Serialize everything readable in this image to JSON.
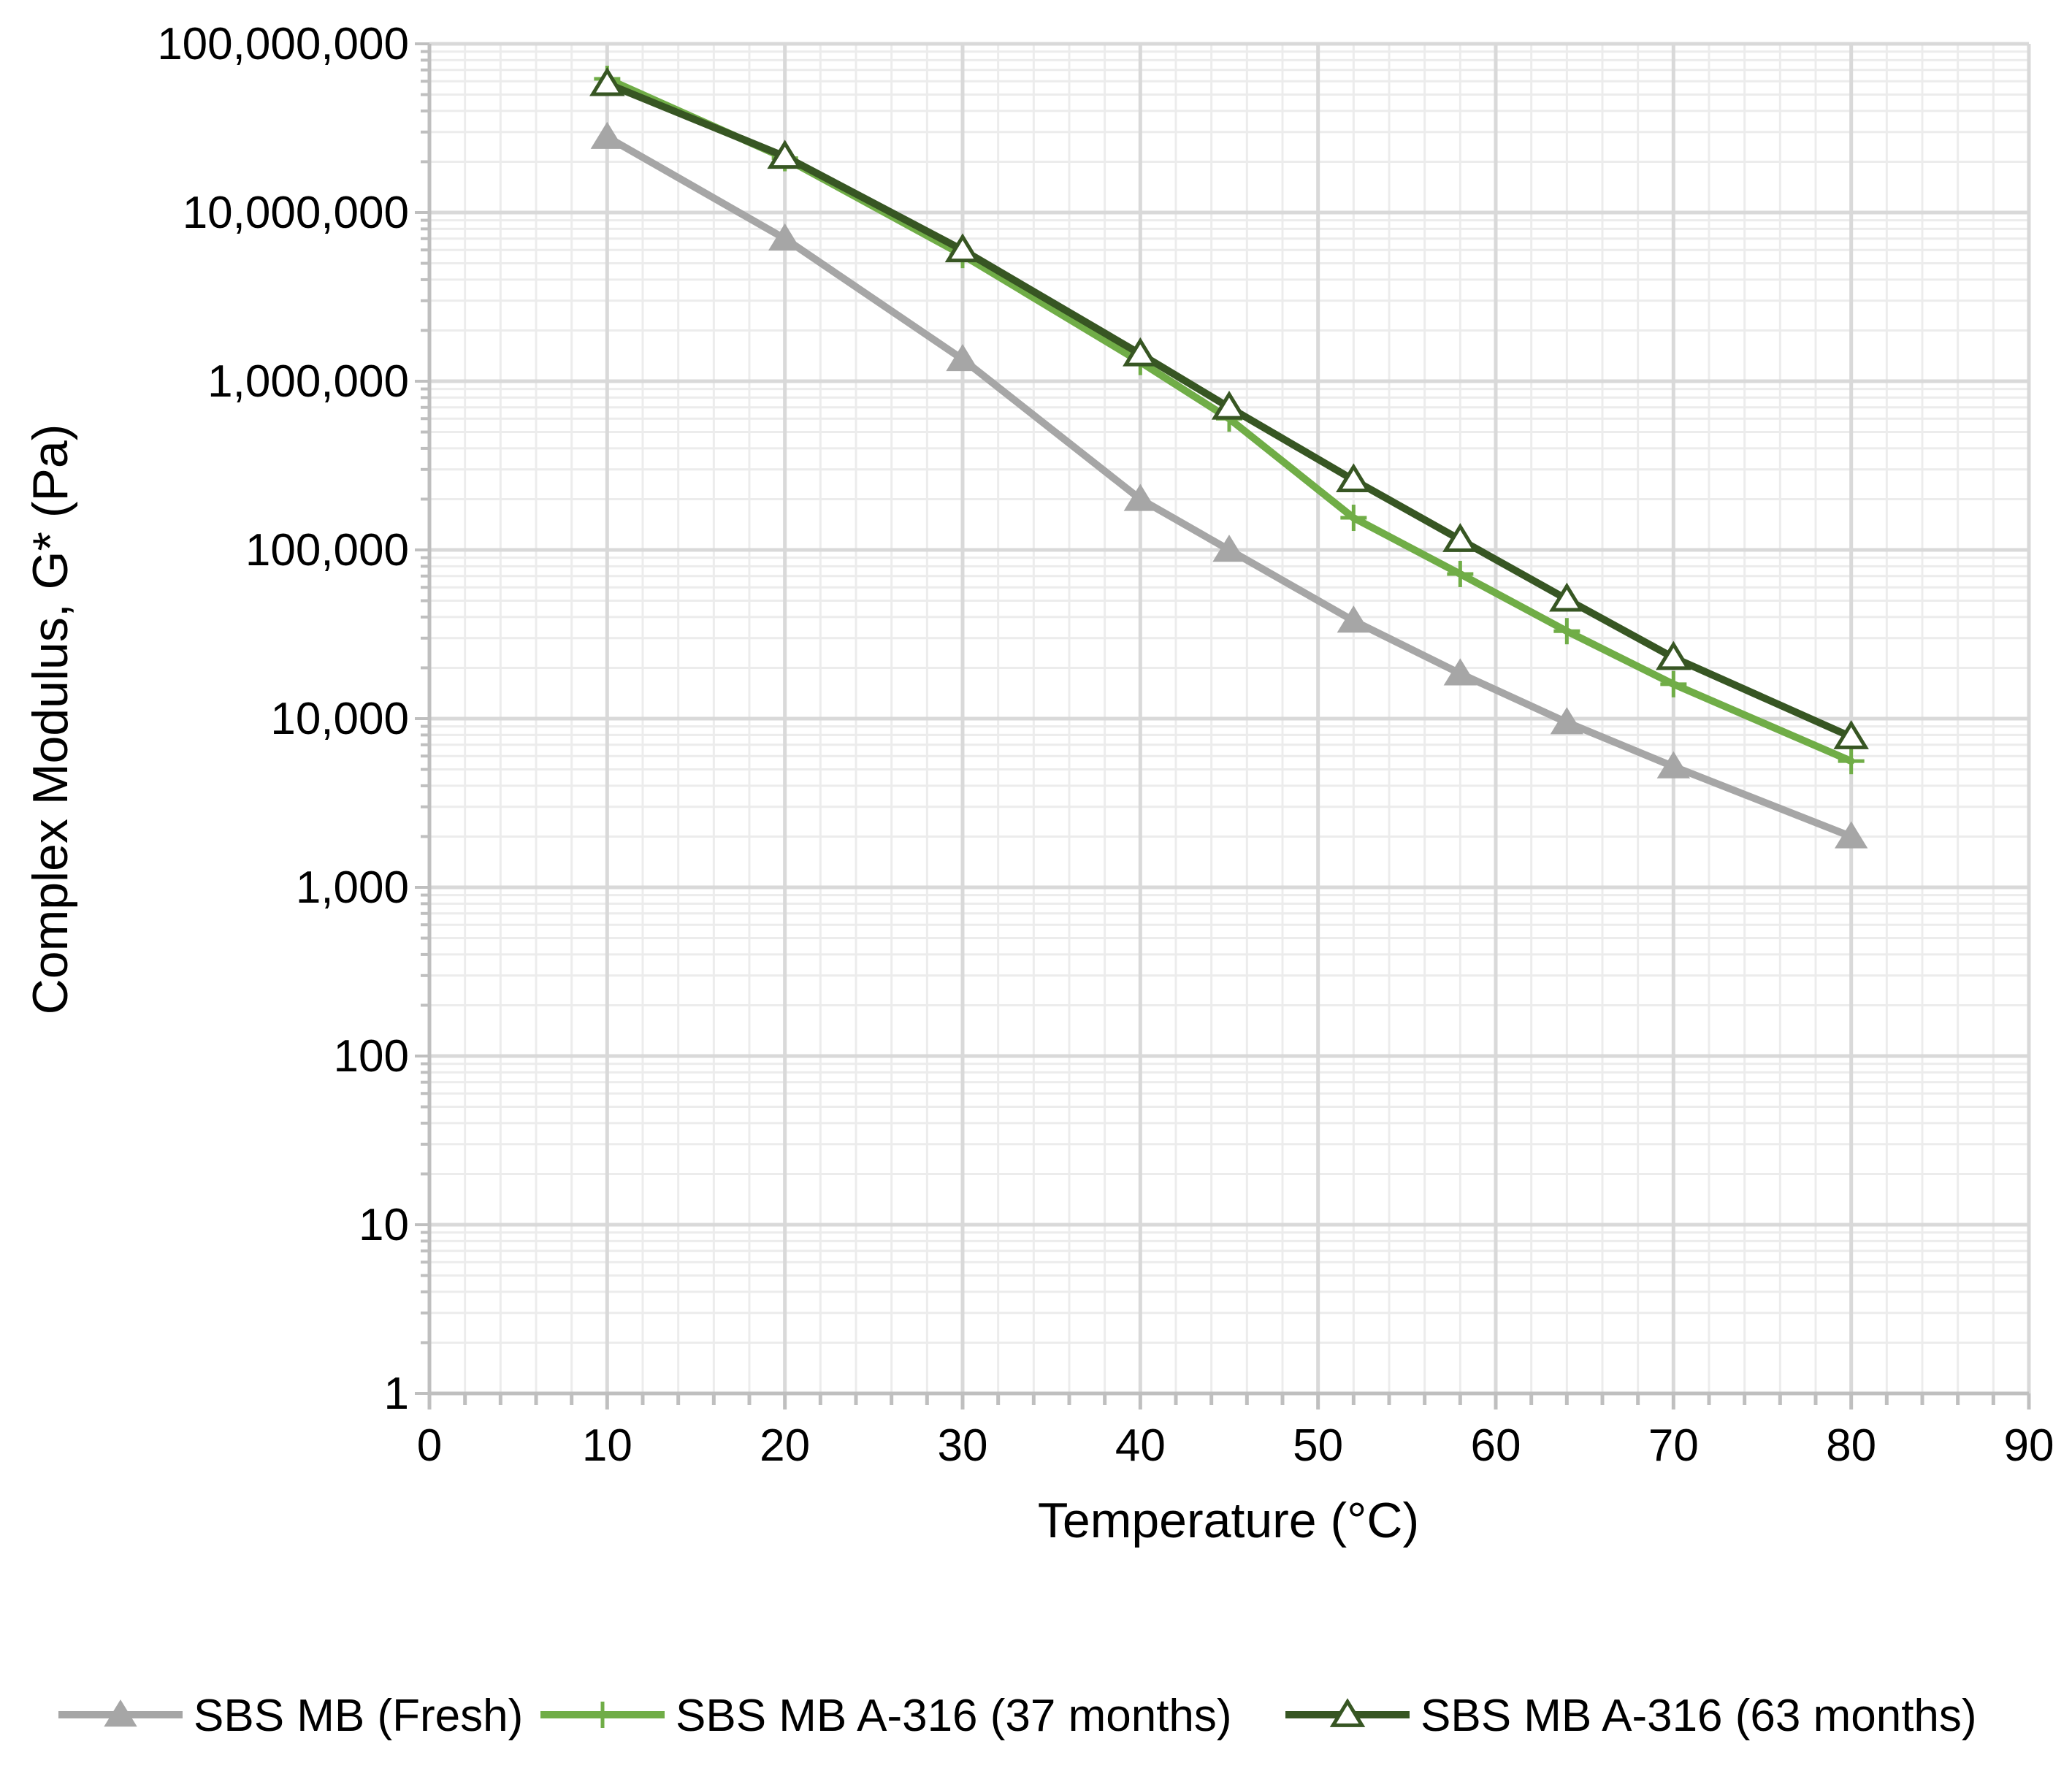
{
  "chart_data": {
    "type": "line",
    "title": "",
    "xlabel": "Temperature (°C)",
    "ylabel": "Complex Modulus, G* (Pa)",
    "x_scale": "linear",
    "y_scale": "log",
    "xlim": [
      0,
      90
    ],
    "ylim": [
      1,
      100000000
    ],
    "x_ticks": [
      0,
      10,
      20,
      30,
      40,
      50,
      60,
      70,
      80,
      90
    ],
    "x_tick_labels": [
      "0",
      "10",
      "20",
      "30",
      "40",
      "50",
      "60",
      "70",
      "80",
      "90"
    ],
    "y_ticks": [
      1,
      10,
      100,
      1000,
      10000,
      100000,
      1000000,
      10000000,
      100000000
    ],
    "y_tick_labels": [
      "1",
      "10",
      "100",
      "1,000",
      "10,000",
      "100,000",
      "1,000,000",
      "10,000,000",
      "100,000,000"
    ],
    "grid": true,
    "legend_position": "bottom",
    "series": [
      {
        "name": "SBS MB (Fresh)",
        "color": "#a6a6a6",
        "marker": "filled-triangle",
        "x": [
          10,
          20,
          30,
          40,
          45,
          52,
          58,
          64,
          70,
          80
        ],
        "values": [
          28000000,
          7000000,
          1350000,
          200000,
          100000,
          38000,
          18500,
          9500,
          5200,
          2000
        ]
      },
      {
        "name": "SBS MB A-316 (37 months)",
        "color": "#70ad47",
        "marker": "plus",
        "x": [
          10,
          20,
          30,
          40,
          45,
          52,
          58,
          64,
          70,
          80
        ],
        "values": [
          62000000,
          21000000,
          5600000,
          1300000,
          600000,
          155000,
          72000,
          33000,
          16000,
          5600
        ]
      },
      {
        "name": "SBS MB A-316 (63 months)",
        "color": "#375623",
        "marker": "open-triangle",
        "x": [
          10,
          20,
          30,
          40,
          45,
          52,
          58,
          64,
          70,
          80
        ],
        "values": [
          58000000,
          21500000,
          6000000,
          1450000,
          700000,
          260000,
          115000,
          51000,
          23000,
          7800
        ]
      }
    ]
  }
}
